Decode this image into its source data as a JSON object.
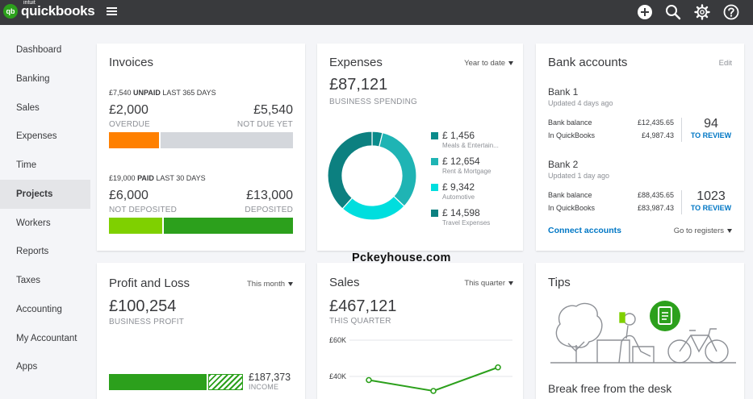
{
  "app": {
    "brand_small": "intuit",
    "brand": "quickbooks",
    "logo_badge": "qb"
  },
  "topbar": {
    "icons": [
      "plus-icon",
      "search-icon",
      "gear-icon",
      "help-icon"
    ]
  },
  "sidebar": {
    "items": [
      {
        "label": "Dashboard"
      },
      {
        "label": "Banking"
      },
      {
        "label": "Sales"
      },
      {
        "label": "Expenses"
      },
      {
        "label": "Time"
      },
      {
        "label": "Projects"
      },
      {
        "label": "Workers"
      },
      {
        "label": "Reports"
      },
      {
        "label": "Taxes"
      },
      {
        "label": "Accounting"
      },
      {
        "label": "My Accountant"
      },
      {
        "label": "Apps"
      }
    ],
    "active": "Projects"
  },
  "invoices": {
    "title": "Invoices",
    "unpaid": {
      "amount": "£7,540",
      "label": "UNPAID",
      "period": "LAST 365 DAYS"
    },
    "overdue": {
      "amount": "£2,000",
      "label": "OVERDUE",
      "fraction": 0.27
    },
    "not_due": {
      "amount": "£5,540",
      "label": "NOT DUE YET"
    },
    "paid": {
      "amount": "£19,000",
      "label": "PAID",
      "period": "LAST 30 DAYS"
    },
    "not_deposited": {
      "amount": "£6,000",
      "label": "NOT DEPOSITED",
      "fraction": 0.29
    },
    "deposited": {
      "amount": "£13,000",
      "label": "DEPOSITED"
    },
    "colors": {
      "overdue": "#ff8000",
      "not_due": "#d4d7dc",
      "not_deposited": "#7fd000",
      "deposited": "#2ca01c"
    }
  },
  "expenses": {
    "title": "Expenses",
    "period": "Year to date",
    "total": "£87,121",
    "sub": "BUSINESS SPENDING",
    "items": [
      {
        "amount": "£ 1,456",
        "label": "Meals & Entertain...",
        "color": "#0a8b8b",
        "value": 1456
      },
      {
        "amount": "£ 12,654",
        "label": "Rent & Mortgage",
        "color": "#1fb4b4",
        "value": 12654
      },
      {
        "amount": "£ 9,342",
        "label": "Automotive",
        "color": "#00dede",
        "value": 9342
      },
      {
        "amount": "£ 14,598",
        "label": "Travel Expenses",
        "color": "#0c8080",
        "value": 14598
      }
    ]
  },
  "bank": {
    "title": "Bank accounts",
    "edit": "Edit",
    "accounts": [
      {
        "name": "Bank 1",
        "updated": "Updated 4 days ago",
        "bank_balance_label": "Bank balance",
        "bank_balance": "£12,435.65",
        "qb_label": "In QuickBooks",
        "qb_balance": "£4,987.43",
        "review_count": "94",
        "review_label": "TO REVIEW"
      },
      {
        "name": "Bank 2",
        "updated": "Updated 1 day ago",
        "bank_balance_label": "Bank balance",
        "bank_balance": "£88,435.65",
        "qb_label": "In QuickBooks",
        "qb_balance": "£83,987.43",
        "review_count": "1023",
        "review_label": "TO REVIEW"
      }
    ],
    "connect": "Connect accounts",
    "goto": "Go to registers"
  },
  "profit": {
    "title": "Profit and Loss",
    "period": "This month",
    "total": "£100,254",
    "sub": "BUSINESS PROFIT",
    "income_amount": "£187,373",
    "income_label": "INCOME",
    "income_fraction": 0.73,
    "colors": {
      "income": "#2ca01c"
    }
  },
  "sales": {
    "title": "Sales",
    "period": "This quarter",
    "total": "£467,121",
    "sub": "THIS QUARTER"
  },
  "chart_data": {
    "type": "line",
    "y_tick_labels": [
      "£60K",
      "£40K"
    ],
    "ylim": [
      20000,
      60000
    ],
    "series": [
      {
        "values": [
          38000,
          32000,
          45000
        ]
      }
    ],
    "grid": true
  },
  "tips": {
    "title": "Tips",
    "headline": "Break free from the desk",
    "illustration": "person-on-bench-with-tree-bike-and-receipt-icon"
  },
  "watermark": "Pckeyhouse.com"
}
